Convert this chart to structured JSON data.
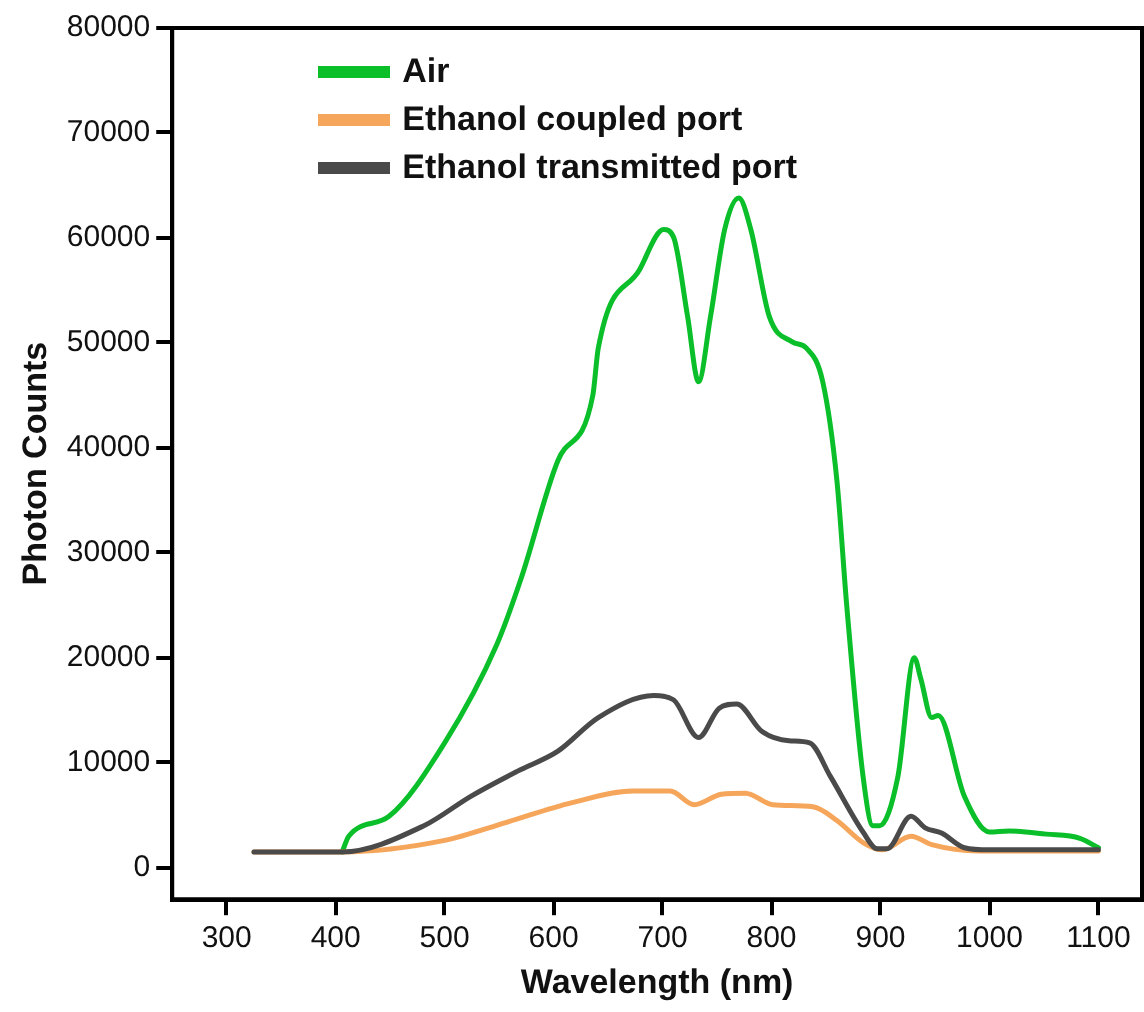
{
  "chart_data": {
    "type": "line",
    "xlabel": "Wavelength (nm)",
    "ylabel": "Photon Counts",
    "xlim": [
      250,
      1140
    ],
    "xticks": [
      300,
      400,
      500,
      600,
      700,
      800,
      900,
      1000,
      1100
    ],
    "ylim": [
      -3000,
      80000
    ],
    "yticks": [
      0,
      10000,
      20000,
      30000,
      40000,
      50000,
      60000,
      70000,
      80000
    ],
    "grid": false,
    "legend": "top left",
    "marker": "none",
    "line_style": "solid",
    "series": [
      {
        "name": "Air",
        "color": "#0bbf2a",
        "x": [
          406,
          412,
          449,
          500,
          548,
          570,
          604,
          636,
          641,
          679,
          701,
          710,
          723,
          733,
          744,
          757,
          770,
          781,
          798,
          819,
          832,
          847,
          860,
          869,
          884,
          893,
          899,
          916,
          931,
          937,
          947,
          953,
          977,
          1000,
          1018,
          1052,
          1083,
          1100
        ],
        "values": [
          1500,
          3000,
          4900,
          11900,
          21300,
          27500,
          38800,
          45000,
          49500,
          57000,
          60800,
          60100,
          52500,
          46300,
          52500,
          60800,
          63800,
          60800,
          52500,
          50100,
          49500,
          46300,
          36900,
          25000,
          8700,
          4000,
          4000,
          8700,
          20000,
          18000,
          14300,
          14500,
          6800,
          3400,
          3500,
          3200,
          2800,
          1900
        ]
      },
      {
        "name": "Ethanol coupled port",
        "color": "#f5a65b",
        "x": [
          325,
          406,
          500,
          556,
          617,
          673,
          707,
          729,
          754,
          776,
          801,
          838,
          860,
          884,
          902,
          928,
          947,
          990,
          1100
        ],
        "values": [
          1500,
          1500,
          2600,
          4300,
          6200,
          7300,
          7300,
          6000,
          7000,
          7100,
          6000,
          5800,
          4500,
          2400,
          1700,
          3000,
          2200,
          1600,
          1600
        ]
      },
      {
        "name": "Ethanol transmitted port",
        "color": "#4a4a4a",
        "x": [
          325,
          406,
          481,
          524,
          567,
          604,
          641,
          692,
          710,
          733,
          752,
          768,
          791,
          816,
          835,
          854,
          884,
          897,
          906,
          928,
          941,
          956,
          977,
          1000,
          1100
        ],
        "values": [
          1500,
          1500,
          4000,
          6800,
          9200,
          11100,
          14300,
          16400,
          16000,
          12400,
          15200,
          15600,
          13000,
          12100,
          11900,
          8700,
          3400,
          1800,
          1800,
          4900,
          3800,
          3300,
          1900,
          1700,
          1700
        ]
      }
    ]
  }
}
